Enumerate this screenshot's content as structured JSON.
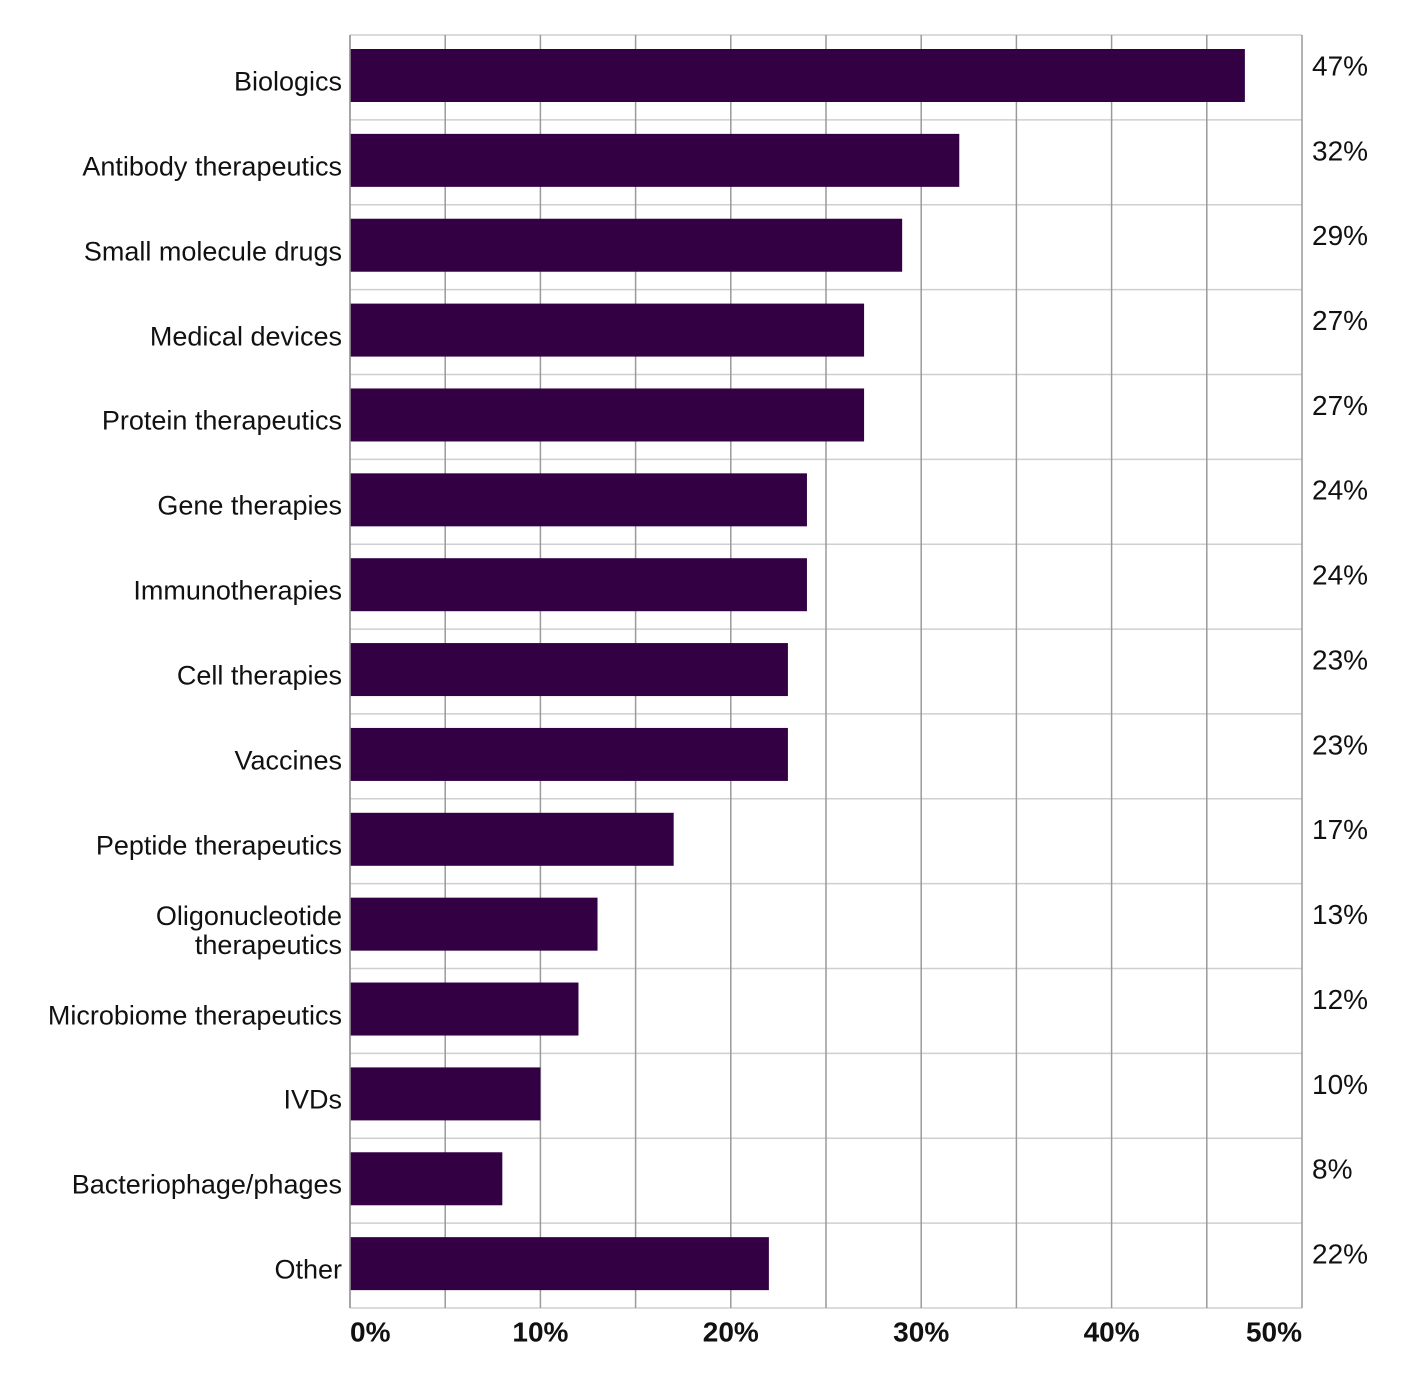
{
  "chart_data": {
    "type": "bar",
    "orientation": "horizontal",
    "categories": [
      "Biologics",
      "Antibody therapeutics",
      "Small molecule drugs",
      "Medical devices",
      "Protein therapeutics",
      "Gene therapies",
      "Immunotherapies",
      "Cell therapies",
      "Vaccines",
      "Peptide therapeutics",
      "Oligonucleotide\ntherapeutics",
      "Microbiome therapeutics",
      "IVDs",
      "Bacteriophage/phages",
      "Other"
    ],
    "values": [
      47,
      32,
      29,
      27,
      27,
      24,
      24,
      23,
      23,
      17,
      13,
      12,
      10,
      8,
      22
    ],
    "value_labels": [
      "47%",
      "32%",
      "29%",
      "27%",
      "27%",
      "24%",
      "24%",
      "23%",
      "23%",
      "17%",
      "13%",
      "12%",
      "10%",
      "8%",
      "22%"
    ],
    "color": "#330044",
    "xlim": [
      0,
      50
    ],
    "xticks": [
      {
        "value": 0,
        "label": "0%"
      },
      {
        "value": 10,
        "label": "10%"
      },
      {
        "value": 20,
        "label": "20%"
      },
      {
        "value": 30,
        "label": "30%"
      },
      {
        "value": 40,
        "label": "40%"
      },
      {
        "value": 50,
        "label": "50%"
      }
    ],
    "minor_xticks": [
      5,
      15,
      25,
      35,
      45
    ],
    "grid": true
  }
}
